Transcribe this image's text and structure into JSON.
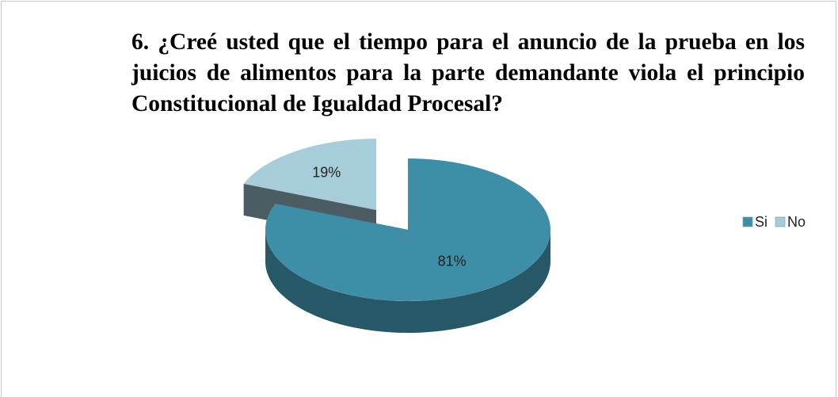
{
  "chart_data": {
    "type": "pie",
    "title": "6. ¿Creé usted que el tiempo para el anuncio de la prueba en los juicios de alimentos para la parte demandante viola el principio Constitucional de Igualdad Procesal?",
    "categories": [
      "Si",
      "No"
    ],
    "values": [
      81,
      19
    ],
    "value_labels": [
      "81%",
      "19%"
    ],
    "colors": [
      "#3f8ea8",
      "#a7cdda"
    ],
    "legend": "right"
  }
}
